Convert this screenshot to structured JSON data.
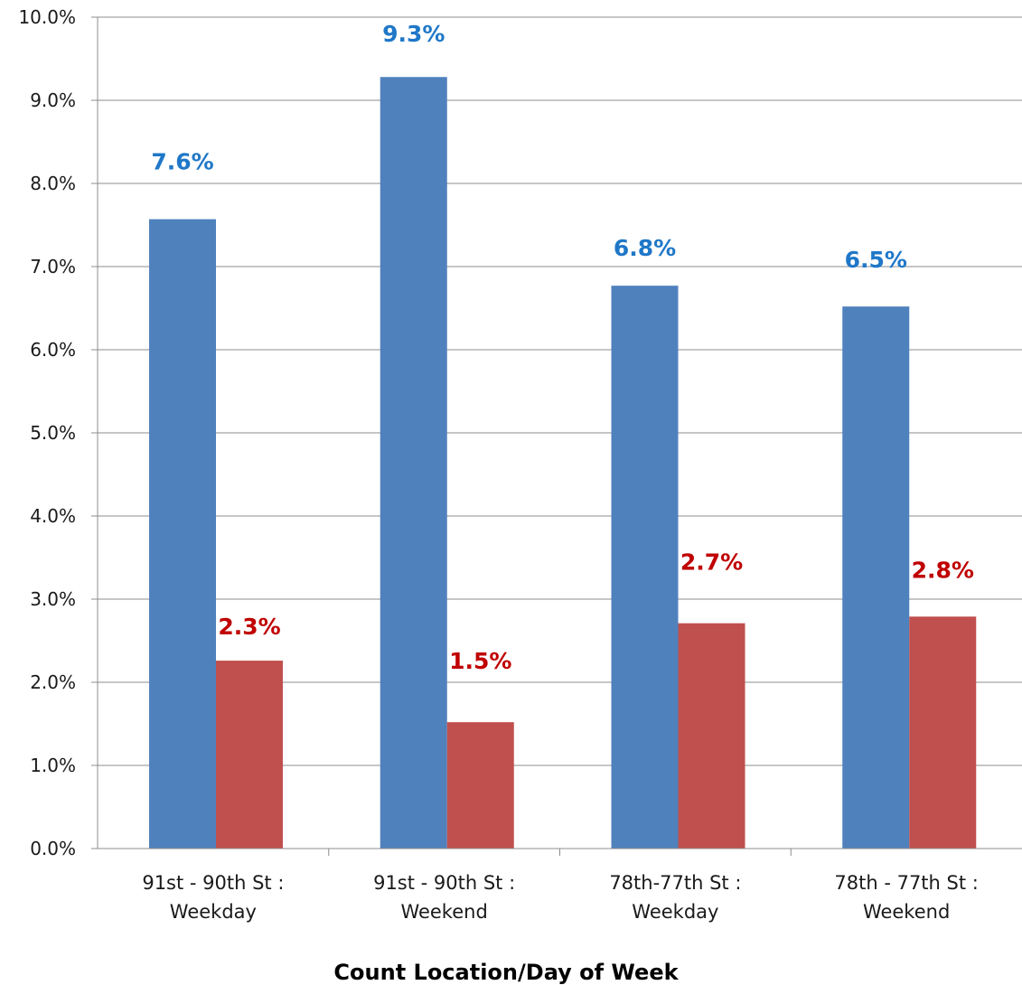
{
  "chart_data": {
    "type": "bar",
    "categories": [
      [
        "91st - 90th St :",
        "Weekday"
      ],
      [
        "91st - 90th St :",
        "Weekend"
      ],
      [
        "78th-77th St :",
        "Weekday"
      ],
      [
        "78th - 77th St :",
        "Weekend"
      ]
    ],
    "series": [
      {
        "values": [
          7.57,
          9.28,
          6.77,
          6.52
        ],
        "labels": [
          "7.6%",
          "9.3%",
          "6.8%",
          "6.5%"
        ],
        "color": "#4f81bd",
        "label_color": "#1f77c8"
      },
      {
        "values": [
          2.26,
          1.52,
          2.71,
          2.79
        ],
        "labels": [
          "2.3%",
          "1.5%",
          "2.7%",
          "2.8%"
        ],
        "color": "#c0504d",
        "label_color": "#c00000"
      }
    ],
    "y_ticks": [
      "0.0%",
      "1.0%",
      "2.0%",
      "3.0%",
      "4.0%",
      "5.0%",
      "6.0%",
      "7.0%",
      "8.0%",
      "9.0%",
      "10.0%"
    ],
    "ylim": [
      0,
      10
    ],
    "xlabel": "Count Location/Day of Week",
    "ylabel": "",
    "grid": true,
    "legend": "none"
  }
}
